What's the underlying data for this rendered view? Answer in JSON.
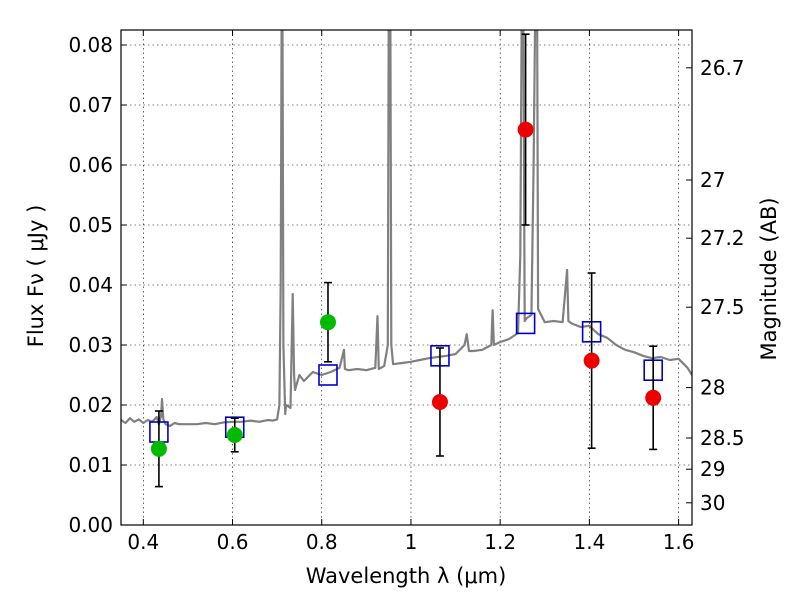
{
  "chart_data": {
    "type": "scatter",
    "xlabel": "Wavelength  λ (μm)",
    "ylabel": "Flux  Fν  ( μJy )",
    "y2label": "Magnitude (AB)",
    "xlim": [
      0.35,
      1.63
    ],
    "ylim": [
      0.0,
      0.0825
    ],
    "grid": true,
    "xticks": [
      {
        "value": 0.4,
        "label": "0.4"
      },
      {
        "value": 0.6,
        "label": "0.6"
      },
      {
        "value": 0.8,
        "label": "0.8"
      },
      {
        "value": 1.0,
        "label": "1"
      },
      {
        "value": 1.2,
        "label": "1.2"
      },
      {
        "value": 1.4,
        "label": "1.4"
      },
      {
        "value": 1.6,
        "label": "1.6"
      }
    ],
    "yticks": [
      {
        "value": 0.0,
        "label": "0.00"
      },
      {
        "value": 0.01,
        "label": "0.01"
      },
      {
        "value": 0.02,
        "label": "0.02"
      },
      {
        "value": 0.03,
        "label": "0.03"
      },
      {
        "value": 0.04,
        "label": "0.04"
      },
      {
        "value": 0.05,
        "label": "0.05"
      },
      {
        "value": 0.06,
        "label": "0.06"
      },
      {
        "value": 0.07,
        "label": "0.07"
      },
      {
        "value": 0.08,
        "label": "0.08"
      }
    ],
    "y2ticks": [
      {
        "flux": 0.0762,
        "label": "26.7"
      },
      {
        "flux": 0.0575,
        "label": "27"
      },
      {
        "flux": 0.0478,
        "label": "27.2"
      },
      {
        "flux": 0.0363,
        "label": "27.5"
      },
      {
        "flux": 0.0229,
        "label": "28"
      },
      {
        "flux": 0.0145,
        "label": "28.5"
      },
      {
        "flux": 0.0093,
        "label": "29"
      },
      {
        "flux": 0.0037,
        "label": "30"
      }
    ],
    "colors": {
      "green": "#00bb00",
      "red": "#ee0000",
      "model_box": "#0000cc",
      "spectrum": "#808080",
      "errorbar": "#000000"
    },
    "series": [
      {
        "marker": "green-circle",
        "points": [
          {
            "x": 0.435,
            "y": 0.0127,
            "err": 0.0063
          },
          {
            "x": 0.605,
            "y": 0.015,
            "err": 0.0028
          },
          {
            "x": 0.814,
            "y": 0.0338,
            "err": 0.0066
          }
        ]
      },
      {
        "marker": "red-circle",
        "points": [
          {
            "x": 1.065,
            "y": 0.0205,
            "err": 0.009
          },
          {
            "x": 1.257,
            "y": 0.0659,
            "err": 0.0159
          },
          {
            "x": 1.405,
            "y": 0.0274,
            "err": 0.0146
          },
          {
            "x": 1.543,
            "y": 0.0212,
            "err": 0.0086
          }
        ]
      },
      {
        "marker": "blue-square",
        "points": [
          {
            "x": 0.435,
            "y": 0.0155
          },
          {
            "x": 0.605,
            "y": 0.0163
          },
          {
            "x": 0.814,
            "y": 0.025
          },
          {
            "x": 1.065,
            "y": 0.0282
          },
          {
            "x": 1.257,
            "y": 0.0336
          },
          {
            "x": 1.405,
            "y": 0.0322
          },
          {
            "x": 1.543,
            "y": 0.0258
          }
        ]
      },
      {
        "marker": "gray-line",
        "points": [
          [
            0.35,
            0.0175
          ],
          [
            0.36,
            0.017
          ],
          [
            0.37,
            0.0178
          ],
          [
            0.38,
            0.0172
          ],
          [
            0.39,
            0.0176
          ],
          [
            0.4,
            0.017
          ],
          [
            0.41,
            0.0175
          ],
          [
            0.42,
            0.0172
          ],
          [
            0.43,
            0.018
          ],
          [
            0.435,
            0.0168
          ],
          [
            0.44,
            0.0182
          ],
          [
            0.442,
            0.021
          ],
          [
            0.445,
            0.0176
          ],
          [
            0.45,
            0.0168
          ],
          [
            0.46,
            0.0165
          ],
          [
            0.47,
            0.017
          ],
          [
            0.48,
            0.0168
          ],
          [
            0.5,
            0.0168
          ],
          [
            0.52,
            0.0168
          ],
          [
            0.54,
            0.017
          ],
          [
            0.56,
            0.0168
          ],
          [
            0.58,
            0.0171
          ],
          [
            0.6,
            0.0172
          ],
          [
            0.62,
            0.0172
          ],
          [
            0.64,
            0.0174
          ],
          [
            0.66,
            0.0172
          ],
          [
            0.68,
            0.0175
          ],
          [
            0.69,
            0.0174
          ],
          [
            0.7,
            0.0176
          ],
          [
            0.705,
            0.02
          ],
          [
            0.708,
            0.04
          ],
          [
            0.71,
            0.0825
          ],
          [
            0.712,
            0.0825
          ],
          [
            0.714,
            0.03
          ],
          [
            0.718,
            0.0185
          ],
          [
            0.72,
            0.02
          ],
          [
            0.73,
            0.0195
          ],
          [
            0.735,
            0.0385
          ],
          [
            0.738,
            0.025
          ],
          [
            0.74,
            0.0225
          ],
          [
            0.75,
            0.025
          ],
          [
            0.76,
            0.024
          ],
          [
            0.78,
            0.0255
          ],
          [
            0.8,
            0.025
          ],
          [
            0.82,
            0.0255
          ],
          [
            0.84,
            0.0262
          ],
          [
            0.85,
            0.0292
          ],
          [
            0.852,
            0.026
          ],
          [
            0.86,
            0.0258
          ],
          [
            0.88,
            0.026
          ],
          [
            0.9,
            0.0258
          ],
          [
            0.92,
            0.0262
          ],
          [
            0.925,
            0.0348
          ],
          [
            0.928,
            0.026
          ],
          [
            0.94,
            0.0265
          ],
          [
            0.948,
            0.03
          ],
          [
            0.95,
            0.0825
          ],
          [
            0.954,
            0.0825
          ],
          [
            0.956,
            0.03
          ],
          [
            0.96,
            0.0268
          ],
          [
            0.98,
            0.027
          ],
          [
            1.0,
            0.0272
          ],
          [
            1.02,
            0.0275
          ],
          [
            1.04,
            0.0278
          ],
          [
            1.06,
            0.028
          ],
          [
            1.08,
            0.0282
          ],
          [
            1.1,
            0.0285
          ],
          [
            1.12,
            0.03
          ],
          [
            1.125,
            0.0318
          ],
          [
            1.13,
            0.029
          ],
          [
            1.14,
            0.029
          ],
          [
            1.16,
            0.0292
          ],
          [
            1.18,
            0.03
          ],
          [
            1.183,
            0.0358
          ],
          [
            1.186,
            0.03
          ],
          [
            1.2,
            0.0305
          ],
          [
            1.22,
            0.031
          ],
          [
            1.24,
            0.032
          ],
          [
            1.245,
            0.045
          ],
          [
            1.248,
            0.0825
          ],
          [
            1.252,
            0.0825
          ],
          [
            1.255,
            0.034
          ],
          [
            1.26,
            0.0345
          ],
          [
            1.27,
            0.035
          ],
          [
            1.275,
            0.06
          ],
          [
            1.278,
            0.0825
          ],
          [
            1.283,
            0.0825
          ],
          [
            1.285,
            0.036
          ],
          [
            1.3,
            0.0338
          ],
          [
            1.32,
            0.034
          ],
          [
            1.34,
            0.0338
          ],
          [
            1.35,
            0.0425
          ],
          [
            1.353,
            0.034
          ],
          [
            1.36,
            0.0336
          ],
          [
            1.38,
            0.033
          ],
          [
            1.4,
            0.0332
          ],
          [
            1.42,
            0.0318
          ],
          [
            1.44,
            0.0312
          ],
          [
            1.46,
            0.03
          ],
          [
            1.48,
            0.0292
          ],
          [
            1.5,
            0.0288
          ],
          [
            1.52,
            0.0282
          ],
          [
            1.54,
            0.0278
          ],
          [
            1.56,
            0.028
          ],
          [
            1.58,
            0.0275
          ],
          [
            1.6,
            0.0277
          ],
          [
            1.62,
            0.0262
          ],
          [
            1.63,
            0.025
          ]
        ]
      }
    ]
  }
}
